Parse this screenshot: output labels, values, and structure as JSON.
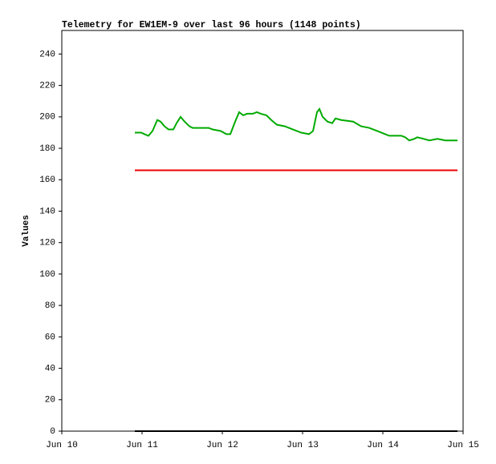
{
  "chart_data": {
    "type": "line",
    "title": "Telemetry for EW1EM-9 over last 96 hours (1148 points)",
    "y_label": "Values",
    "xlim": [
      10,
      15
    ],
    "xticks": [
      {
        "value": 10,
        "label": "Jun 10"
      },
      {
        "value": 11,
        "label": "Jun 11"
      },
      {
        "value": 12,
        "label": "Jun 12"
      },
      {
        "value": 13,
        "label": "Jun 13"
      },
      {
        "value": 14,
        "label": "Jun 14"
      },
      {
        "value": 15,
        "label": "Jun 15"
      }
    ],
    "ylim": [
      0,
      255
    ],
    "yticks": [
      0,
      20,
      40,
      60,
      80,
      100,
      120,
      140,
      160,
      180,
      200,
      220,
      240
    ],
    "series": [
      {
        "color": "#00aa00",
        "x": [
          10.91,
          10.99,
          11.03,
          11.08,
          11.13,
          11.19,
          11.23,
          11.28,
          11.33,
          11.39,
          11.43,
          11.48,
          11.53,
          11.59,
          11.63,
          11.83,
          11.88,
          11.98,
          12.05,
          12.1,
          12.16,
          12.21,
          12.26,
          12.31,
          12.38,
          12.43,
          12.48,
          12.55,
          12.61,
          12.68,
          12.78,
          12.88,
          12.98,
          13.08,
          13.13,
          13.18,
          13.21,
          13.25,
          13.31,
          13.37,
          13.41,
          13.48,
          13.63,
          13.73,
          13.83,
          13.93,
          14.03,
          14.08,
          14.23,
          14.28,
          14.33,
          14.39,
          14.43,
          14.51,
          14.58,
          14.68,
          14.78,
          14.93
        ],
        "values": [
          190,
          190,
          189,
          188,
          191,
          198,
          197,
          194,
          192,
          192,
          196,
          200,
          197,
          194,
          193,
          193,
          192,
          191,
          189,
          189,
          197,
          203,
          201,
          202,
          202,
          203,
          202,
          201,
          198,
          195,
          194,
          192,
          190,
          189,
          191,
          203,
          205,
          200,
          197,
          196,
          199,
          198,
          197,
          194,
          193,
          191,
          189,
          188,
          188,
          187,
          185,
          186,
          187,
          186,
          185,
          186,
          185,
          185
        ]
      },
      {
        "color": "#ee0000",
        "x": [
          10.91,
          14.93
        ],
        "values": [
          166,
          166
        ]
      },
      {
        "color": "#000000",
        "x": [
          10.91,
          14.93
        ],
        "values": [
          0,
          0
        ]
      }
    ]
  }
}
